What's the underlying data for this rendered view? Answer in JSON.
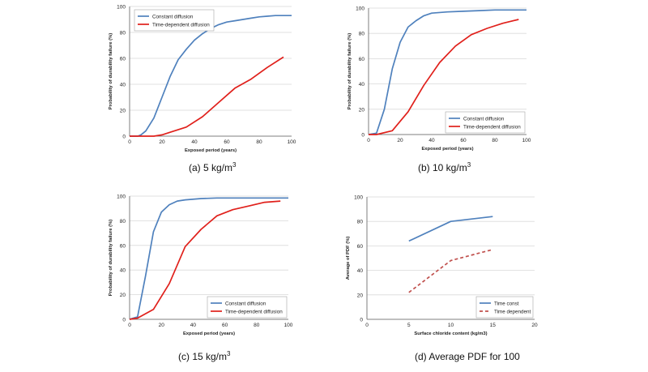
{
  "chart_data": [
    {
      "type": "line",
      "caption": "(a) 5 kg/m",
      "caption_sup": "3",
      "xlabel": "Exposed period (years)",
      "ylabel": "Probability of durability failure (%)",
      "xlim": [
        0,
        100
      ],
      "ylim": [
        0,
        100
      ],
      "xticks": [
        0,
        20,
        40,
        60,
        80,
        100
      ],
      "yticks": [
        0,
        20,
        40,
        60,
        80,
        100
      ],
      "grid": true,
      "legend_position": "top-left",
      "series": [
        {
          "name": "Constant diffusion",
          "color": "#4F81BD",
          "dash": "",
          "x": [
            0,
            5,
            7,
            10,
            15,
            20,
            25,
            30,
            35,
            40,
            45,
            50,
            55,
            60,
            65,
            70,
            75,
            80,
            85,
            90,
            95,
            100
          ],
          "y": [
            0,
            0,
            1,
            4,
            14,
            30,
            46,
            59,
            67,
            74,
            79,
            83,
            86,
            88,
            89,
            90,
            91,
            92,
            92.5,
            93,
            93,
            93
          ]
        },
        {
          "name": "Time-dependent diffusion",
          "color": "#E0201B",
          "dash": "",
          "x": [
            0,
            15,
            20,
            25,
            35,
            45,
            55,
            65,
            75,
            85,
            95
          ],
          "y": [
            0,
            0,
            1,
            3,
            7,
            15,
            26,
            37,
            44,
            53,
            61
          ]
        }
      ]
    },
    {
      "type": "line",
      "caption": "(b) 10 kg/m",
      "caption_sup": "3",
      "xlabel": "Exposed period (years)",
      "ylabel": "Probability of durability failure (%)",
      "xlim": [
        0,
        100
      ],
      "ylim": [
        0,
        100
      ],
      "xticks": [
        0,
        20,
        40,
        60,
        80,
        100
      ],
      "yticks": [
        0,
        20,
        40,
        60,
        80,
        100
      ],
      "grid": true,
      "legend_position": "bottom-right",
      "series": [
        {
          "name": "Constant diffusion",
          "color": "#4F81BD",
          "dash": "",
          "x": [
            0,
            5,
            10,
            15,
            20,
            25,
            30,
            35,
            40,
            50,
            60,
            70,
            80,
            90,
            100
          ],
          "y": [
            0,
            1,
            20,
            52,
            73,
            85,
            90,
            94,
            96,
            97,
            97.5,
            98,
            98.5,
            98.5,
            98.5
          ]
        },
        {
          "name": "Time-dependent diffusion",
          "color": "#E0201B",
          "dash": "",
          "x": [
            0,
            5,
            15,
            25,
            35,
            45,
            55,
            65,
            75,
            85,
            95
          ],
          "y": [
            0,
            0,
            3,
            18,
            39,
            57,
            70,
            79,
            84,
            88,
            91
          ]
        }
      ]
    },
    {
      "type": "line",
      "caption": "(c) 15 kg/m",
      "caption_sup": "3",
      "xlabel": "Exposed period (years)",
      "ylabel": "Probability of durability failure (%)",
      "xlim": [
        0,
        100
      ],
      "ylim": [
        0,
        100
      ],
      "xticks": [
        0,
        20,
        40,
        60,
        80,
        100
      ],
      "yticks": [
        0,
        20,
        40,
        60,
        80,
        100
      ],
      "grid": true,
      "legend_position": "bottom-right",
      "series": [
        {
          "name": "Constant diffusion",
          "color": "#4F81BD",
          "dash": "",
          "x": [
            0,
            5,
            10,
            15,
            20,
            25,
            30,
            35,
            45,
            55,
            65,
            75,
            85,
            100
          ],
          "y": [
            0,
            2,
            35,
            71,
            87,
            93,
            96,
            97,
            98,
            98.5,
            98.5,
            98.5,
            98.5,
            98.5
          ]
        },
        {
          "name": "Time-dependent diffusion",
          "color": "#E0201B",
          "dash": "",
          "x": [
            0,
            5,
            15,
            25,
            35,
            45,
            55,
            65,
            75,
            85,
            95
          ],
          "y": [
            0,
            1,
            8,
            29,
            59,
            73,
            84,
            89,
            92,
            95,
            96
          ]
        }
      ]
    },
    {
      "type": "line",
      "caption": "(d) Average PDF for 100",
      "caption_sup": "",
      "xlabel": "Surface chloride content (kg/m3)",
      "ylabel": "Average of PDF (%)",
      "xlim": [
        0,
        20
      ],
      "ylim": [
        0,
        100
      ],
      "xticks": [
        0,
        5,
        10,
        15,
        20
      ],
      "yticks": [
        0,
        20,
        40,
        60,
        80,
        100
      ],
      "grid": true,
      "legend_position": "bottom-right",
      "series": [
        {
          "name": "Time const",
          "color": "#4F81BD",
          "dash": "",
          "x": [
            5,
            10,
            15
          ],
          "y": [
            64,
            80,
            84
          ]
        },
        {
          "name": "Time dependent",
          "color": "#C0504D",
          "dash": "4,3",
          "x": [
            5,
            10,
            15
          ],
          "y": [
            22,
            48,
            57
          ]
        }
      ]
    }
  ]
}
